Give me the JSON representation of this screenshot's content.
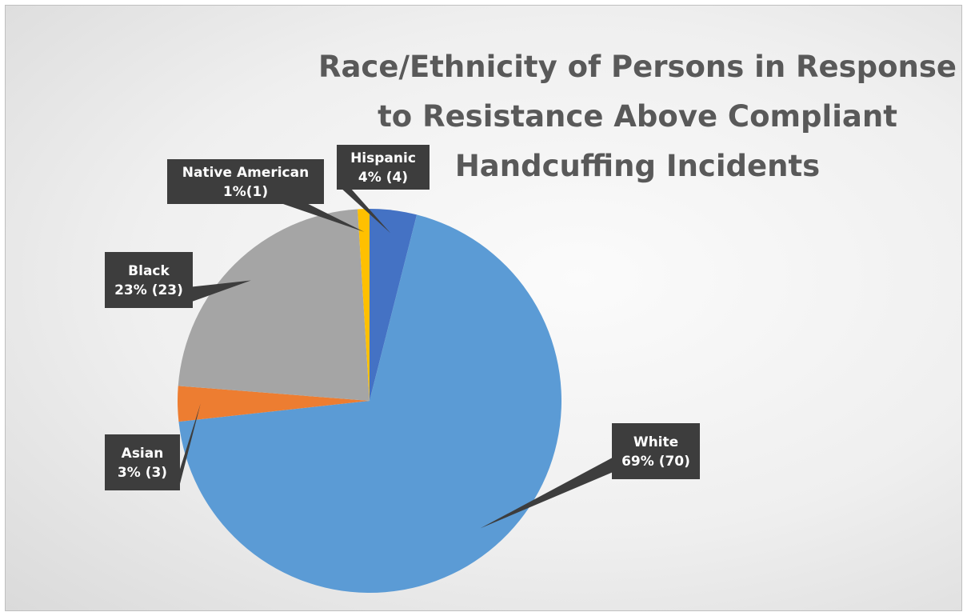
{
  "chart_data": {
    "type": "pie",
    "title": "Race/Ethnicity of Persons in Response to Resistance Above Compliant Handcuffing Incidents",
    "start_category": "Hispanic",
    "slices": [
      {
        "name": "White",
        "value": 70,
        "pct_label": "69% (70)",
        "color": "#5b9bd5"
      },
      {
        "name": "Asian",
        "value": 3,
        "pct_label": "3% (3)",
        "color": "#ed7d31"
      },
      {
        "name": "Black",
        "value": 23,
        "pct_label": "23% (23)",
        "color": "#a5a5a5"
      },
      {
        "name": "Native American",
        "value": 1,
        "pct_label": "1%(1)",
        "color": "#ffc000"
      },
      {
        "name": "Hispanic",
        "value": 4,
        "pct_label": "4% (4)",
        "color": "#4472c4"
      }
    ]
  }
}
